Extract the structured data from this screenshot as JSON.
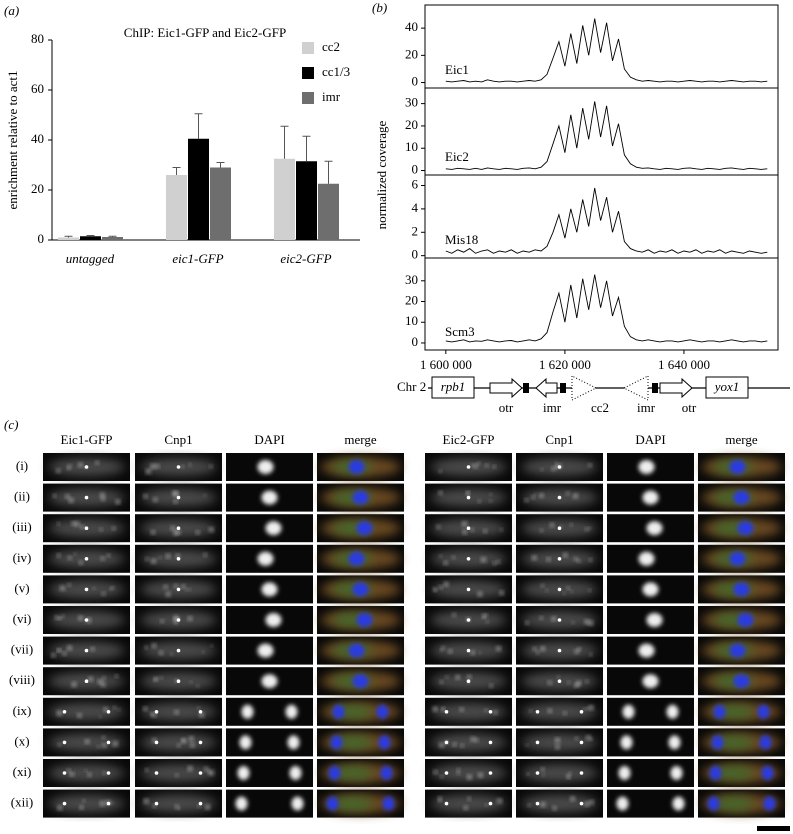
{
  "chart_data": [
    {
      "type": "bar",
      "panel_label": "(a)",
      "title": "ChIP: Eic1-GFP and Eic2-GFP",
      "ylabel": "enrichment relative to act1",
      "categories": [
        "untagged",
        "eic1-GFP",
        "eic2-GFP"
      ],
      "series": [
        {
          "name": "cc2",
          "color": "#d0d0d0",
          "values": [
            1,
            26,
            32.5
          ],
          "errors": [
            0.5,
            3,
            13
          ]
        },
        {
          "name": "cc1/3",
          "color": "#000000",
          "values": [
            1.5,
            40.5,
            31.5
          ],
          "errors": [
            0.3,
            10,
            10
          ]
        },
        {
          "name": "imr",
          "color": "#6e6e6e",
          "values": [
            1.2,
            29,
            22.5
          ],
          "errors": [
            0.3,
            2,
            9
          ]
        }
      ],
      "ylim": [
        0,
        80
      ],
      "yticks": [
        0,
        20,
        40,
        60,
        80
      ]
    },
    {
      "type": "line",
      "panel_label": "(b)",
      "xlim": [
        1596500,
        1655800
      ],
      "ylim": [
        -4,
        57
      ],
      "yticks": [
        0,
        20,
        40
      ],
      "x": [
        1600000,
        1601000,
        1602000,
        1603000,
        1604000,
        1605000,
        1606000,
        1607000,
        1608000,
        1609000,
        1610000,
        1611000,
        1612000,
        1613000,
        1614000,
        1615000,
        1616000,
        1617000,
        1618000,
        1619000,
        1620000,
        1621000,
        1622000,
        1623000,
        1624000,
        1625000,
        1626000,
        1627000,
        1628000,
        1629000,
        1630000,
        1631000,
        1632000,
        1633000,
        1634000,
        1635000,
        1636000,
        1637000,
        1638000,
        1639000,
        1640000,
        1641000,
        1642000,
        1643000,
        1644000,
        1645000,
        1646000,
        1647000,
        1648000,
        1649000,
        1650000,
        1651000,
        1652000,
        1653000,
        1654000
      ],
      "series": [
        {
          "name": "Eic1",
          "color": "#000000",
          "values": [
            1,
            0.5,
            1,
            1.5,
            0.5,
            1,
            0.5,
            2,
            1,
            0.5,
            1,
            1,
            0.5,
            1,
            1.5,
            1,
            2,
            6,
            18,
            30,
            12,
            36,
            14,
            42,
            20,
            47,
            22,
            44,
            16,
            32,
            10,
            4,
            2,
            1,
            1.5,
            1,
            0.5,
            1,
            1,
            0.5,
            1,
            1.5,
            1,
            0.5,
            1,
            1,
            0.5,
            1,
            1.5,
            1,
            0.5,
            1,
            1,
            0.5,
            1
          ]
        }
      ]
    },
    {
      "type": "line",
      "xlim": [
        1596500,
        1655800
      ],
      "ylim": [
        -2,
        37
      ],
      "yticks": [
        0,
        10,
        20,
        30
      ],
      "x": [
        1600000,
        1601000,
        1602000,
        1603000,
        1604000,
        1605000,
        1606000,
        1607000,
        1608000,
        1609000,
        1610000,
        1611000,
        1612000,
        1613000,
        1614000,
        1615000,
        1616000,
        1617000,
        1618000,
        1619000,
        1620000,
        1621000,
        1622000,
        1623000,
        1624000,
        1625000,
        1626000,
        1627000,
        1628000,
        1629000,
        1630000,
        1631000,
        1632000,
        1633000,
        1634000,
        1635000,
        1636000,
        1637000,
        1638000,
        1639000,
        1640000,
        1641000,
        1642000,
        1643000,
        1644000,
        1645000,
        1646000,
        1647000,
        1648000,
        1649000,
        1650000,
        1651000,
        1652000,
        1653000,
        1654000
      ],
      "series": [
        {
          "name": "Eic2",
          "color": "#000000",
          "values": [
            0.8,
            0.5,
            1,
            0.8,
            0.5,
            1,
            0.5,
            1.2,
            0.8,
            0.5,
            1,
            0.8,
            0.5,
            1,
            1.2,
            0.8,
            1.5,
            4,
            12,
            20,
            8,
            25,
            10,
            28,
            14,
            31,
            15,
            29,
            11,
            21,
            7,
            3,
            1.5,
            1,
            1.2,
            0.8,
            0.5,
            1,
            0.8,
            0.5,
            1,
            1.2,
            0.8,
            0.5,
            1,
            0.8,
            0.5,
            1,
            1.2,
            0.8,
            0.5,
            1,
            0.8,
            0.5,
            0.8
          ]
        }
      ]
    },
    {
      "type": "line",
      "ylabel": "normalized coverage",
      "xlim": [
        1596500,
        1655800
      ],
      "ylim": [
        -0.2,
        6.9
      ],
      "yticks": [
        0,
        2,
        4,
        6
      ],
      "x": [
        1600000,
        1601000,
        1602000,
        1603000,
        1604000,
        1605000,
        1606000,
        1607000,
        1608000,
        1609000,
        1610000,
        1611000,
        1612000,
        1613000,
        1614000,
        1615000,
        1616000,
        1617000,
        1618000,
        1619000,
        1620000,
        1621000,
        1622000,
        1623000,
        1624000,
        1625000,
        1626000,
        1627000,
        1628000,
        1629000,
        1630000,
        1631000,
        1632000,
        1633000,
        1634000,
        1635000,
        1636000,
        1637000,
        1638000,
        1639000,
        1640000,
        1641000,
        1642000,
        1643000,
        1644000,
        1645000,
        1646000,
        1647000,
        1648000,
        1649000,
        1650000,
        1651000,
        1652000,
        1653000,
        1654000
      ],
      "series": [
        {
          "name": "Mis18",
          "color": "#000000",
          "values": [
            0.4,
            0.2,
            0.5,
            0.3,
            0.6,
            0.2,
            0.4,
            0.5,
            0.2,
            0.4,
            0.3,
            0.5,
            0.2,
            0.4,
            0.3,
            0.5,
            0.4,
            0.8,
            2,
            3.5,
            1.5,
            4,
            2,
            4.8,
            2.5,
            5.8,
            3,
            5,
            2,
            3.8,
            1.2,
            0.6,
            0.4,
            0.3,
            0.5,
            0.2,
            0.4,
            0.3,
            0.5,
            0.2,
            0.4,
            0.3,
            0.5,
            0.2,
            0.4,
            0.3,
            0.5,
            0.2,
            0.4,
            0.3,
            0.2,
            0.4,
            0.3,
            0.2,
            0.3
          ]
        }
      ]
    },
    {
      "type": "line",
      "xlim": [
        1596500,
        1655800
      ],
      "ylim": [
        -3.4,
        41
      ],
      "yticks": [
        0,
        10,
        20,
        30
      ],
      "xticks": [
        {
          "value": 1600000,
          "label": "1 600 000"
        },
        {
          "value": 1620000,
          "label": "1 620 000"
        },
        {
          "value": 1640000,
          "label": "1 640 000"
        }
      ],
      "x": [
        1600000,
        1601000,
        1602000,
        1603000,
        1604000,
        1605000,
        1606000,
        1607000,
        1608000,
        1609000,
        1610000,
        1611000,
        1612000,
        1613000,
        1614000,
        1615000,
        1616000,
        1617000,
        1618000,
        1619000,
        1620000,
        1621000,
        1622000,
        1623000,
        1624000,
        1625000,
        1626000,
        1627000,
        1628000,
        1629000,
        1630000,
        1631000,
        1632000,
        1633000,
        1634000,
        1635000,
        1636000,
        1637000,
        1638000,
        1639000,
        1640000,
        1641000,
        1642000,
        1643000,
        1644000,
        1645000,
        1646000,
        1647000,
        1648000,
        1649000,
        1650000,
        1651000,
        1652000,
        1653000,
        1654000
      ],
      "series": [
        {
          "name": "Scm3",
          "color": "#000000",
          "values": [
            1,
            0.5,
            1,
            1.5,
            0.5,
            1,
            0.8,
            1.5,
            1,
            0.5,
            1,
            1.2,
            0.5,
            1,
            1.5,
            1,
            2,
            5,
            15,
            24,
            10,
            28,
            12,
            31,
            16,
            33,
            17,
            30,
            13,
            22,
            8,
            3,
            1.5,
            1,
            1.5,
            1,
            0.5,
            1,
            1,
            0.5,
            1,
            1.5,
            1,
            0.5,
            1,
            1,
            0.5,
            1,
            1.5,
            1,
            0.5,
            1,
            1,
            0.5,
            1
          ]
        }
      ]
    }
  ],
  "diagram": {
    "chromosome": "Chr 2",
    "genes": [
      "rpb1",
      "yox1"
    ],
    "regions": [
      "otr",
      "imr",
      "cc2",
      "imr",
      "otr"
    ]
  },
  "panel_c": {
    "panel_label": "(c)",
    "left_headers": [
      "Eic1-GFP",
      "Cnp1",
      "DAPI",
      "merge"
    ],
    "right_headers": [
      "Eic2-GFP",
      "Cnp1",
      "DAPI",
      "merge"
    ],
    "rows": [
      "(i)",
      "(ii)",
      "(iii)",
      "(iv)",
      "(v)",
      "(vi)",
      "(vii)",
      "(viii)",
      "(ix)",
      "(x)",
      "(xi)",
      "(xii)"
    ]
  }
}
